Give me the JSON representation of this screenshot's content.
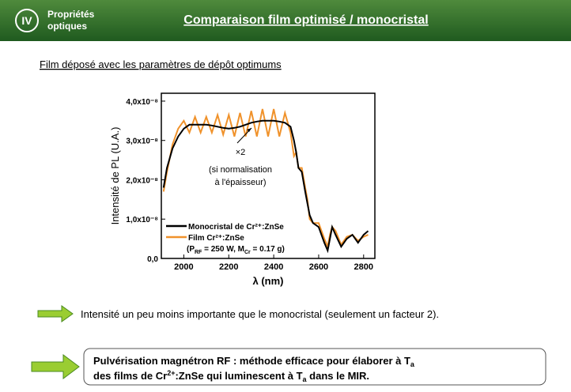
{
  "header": {
    "section": "IV",
    "section_label": [
      "Propriétés",
      "optiques"
    ],
    "title": "Comparaison film optimisé / monocristal"
  },
  "subtitle": "Film déposé avec les paramètres de dépôt optimums",
  "chart_data": {
    "type": "line",
    "ylabel": "Intensité de PL (U.A.)",
    "xlabel": "λ (nm)",
    "x": [
      1910,
      1925,
      1950,
      1975,
      2000,
      2025,
      2050,
      2075,
      2100,
      2125,
      2150,
      2175,
      2200,
      2225,
      2250,
      2275,
      2300,
      2325,
      2350,
      2375,
      2400,
      2425,
      2450,
      2475,
      2490,
      2500,
      2510,
      2525,
      2540,
      2550,
      2560,
      2575,
      2600,
      2625,
      2640,
      2650,
      2660,
      2675,
      2700,
      2725,
      2750,
      2775,
      2800,
      2820
    ],
    "series": [
      {
        "name": "Monocristal de Cr²⁺:ZnSe",
        "color": "#000000",
        "values": [
          1.8e-08,
          2.3e-08,
          2.8e-08,
          3.1e-08,
          3.3e-08,
          3.4e-08,
          3.4e-08,
          3.4e-08,
          3.4e-08,
          3.38e-08,
          3.35e-08,
          3.32e-08,
          3.3e-08,
          3.32e-08,
          3.35e-08,
          3.4e-08,
          3.45e-08,
          3.48e-08,
          3.5e-08,
          3.5e-08,
          3.5e-08,
          3.48e-08,
          3.45e-08,
          3.35e-08,
          3e-08,
          2.7e-08,
          2.3e-08,
          2.2e-08,
          1.7e-08,
          1.4e-08,
          1.1e-08,
          9e-09,
          8e-09,
          4e-09,
          2e-09,
          5e-09,
          8e-09,
          6e-09,
          3e-09,
          5e-09,
          6e-09,
          4e-09,
          6e-09,
          7e-09
        ]
      },
      {
        "name": "Film Cr²⁺:ZnSe",
        "color": "#f0922b",
        "values": [
          1.7e-08,
          2.2e-08,
          2.9e-08,
          3.3e-08,
          3.5e-08,
          3.2e-08,
          3.6e-08,
          3.2e-08,
          3.6e-08,
          3.2e-08,
          3.65e-08,
          3.15e-08,
          3.65e-08,
          3.1e-08,
          3.7e-08,
          3.1e-08,
          3.75e-08,
          3.1e-08,
          3.8e-08,
          3.1e-08,
          3.8e-08,
          3.1e-08,
          3.7e-08,
          3.2e-08,
          2.6e-08,
          2.7e-08,
          2.3e-08,
          2.3e-08,
          1.8e-08,
          1.5e-08,
          1e-08,
          9e-09,
          9e-09,
          5e-09,
          3e-09,
          6e-09,
          8e-09,
          7e-09,
          3.5e-09,
          5.5e-09,
          6e-09,
          4.5e-09,
          5.5e-09,
          6e-09
        ]
      }
    ],
    "legend_note": [
      "(P",
      "RF",
      " = 250 W, M",
      "Cr",
      " = 0.17 g)"
    ],
    "annotations": [
      "×2",
      "(si normalisation",
      "à l'épaisseur)"
    ],
    "xlim": [
      1900,
      2850
    ],
    "xticks": [
      2000,
      2200,
      2400,
      2600,
      2800
    ],
    "ylim": [
      0,
      4.2e-08
    ],
    "yticks": [
      {
        "value": 0,
        "label": "0,0"
      },
      {
        "value": 1e-08,
        "label": "1,0x10⁻⁸"
      },
      {
        "value": 2e-08,
        "label": "2,0x10⁻⁸"
      },
      {
        "value": 3e-08,
        "label": "3,0x10⁻⁸"
      },
      {
        "value": 4e-08,
        "label": "4,0x10⁻⁸"
      }
    ]
  },
  "bullet": "Intensité un peu moins importante que le monocristal (seulement un facteur 2).",
  "box": {
    "line1": [
      "Pulvérisation magnétron RF : méthode efficace pour élaborer à T",
      "a"
    ],
    "line2": [
      "des films de Cr",
      "2+",
      ":ZnSe qui luminescent à T",
      "a",
      " dans le MIR."
    ]
  }
}
